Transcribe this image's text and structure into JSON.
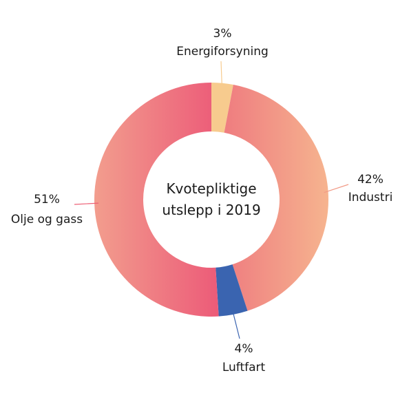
{
  "chart_data": {
    "type": "pie",
    "variant": "donut",
    "center_label": [
      "Kvotepliktige",
      "utslepp i 2019"
    ],
    "slices": [
      {
        "name": "Energiforsyning",
        "value": 3,
        "label": "3%",
        "color": "#f7cb8e"
      },
      {
        "name": "Industri",
        "value": 42,
        "label": "42%",
        "color": "#f29a86"
      },
      {
        "name": "Luftfart",
        "value": 4,
        "label": "4%",
        "color": "#3a64b0"
      },
      {
        "name": "Olje og gass",
        "value": 51,
        "label": "51%",
        "color": "#ed5f75"
      }
    ]
  }
}
